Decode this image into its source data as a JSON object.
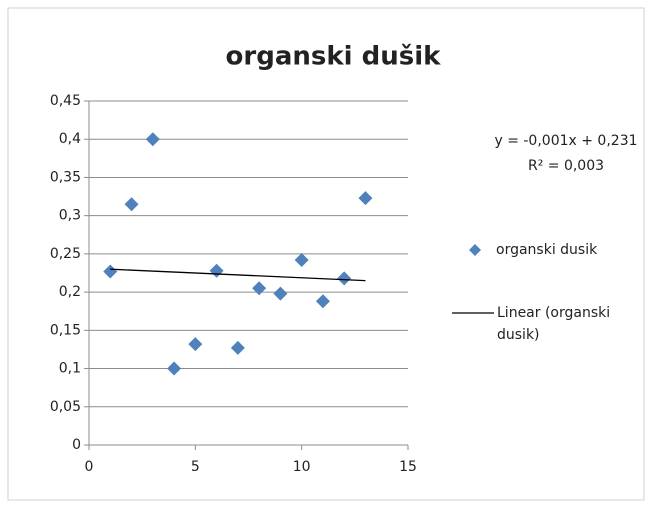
{
  "chart_data": {
    "type": "scatter",
    "title": "organski dušik",
    "x": [
      1,
      2,
      3,
      4,
      5,
      6,
      7,
      8,
      9,
      10,
      11,
      12,
      13
    ],
    "series": [
      {
        "name": "organski dusik",
        "color": "#4f81bd",
        "values": [
          0.227,
          0.315,
          0.4,
          0.1,
          0.132,
          0.228,
          0.127,
          0.205,
          0.198,
          0.242,
          0.188,
          0.218,
          0.323
        ]
      }
    ],
    "trendline": {
      "name": "Linear (organski dusik)",
      "color": "#000000",
      "x": [
        1,
        13
      ],
      "values": [
        0.23,
        0.215
      ]
    },
    "annotations": [
      "y = -0,001x + 0,231",
      "R² = 0,003"
    ],
    "xlim": [
      0,
      15
    ],
    "xticks": [
      0,
      5,
      10,
      15
    ],
    "ylim": [
      0,
      0.45
    ],
    "yticks": [
      0,
      {
        "value": 0.05,
        "label": "0,05"
      },
      {
        "value": 0.1,
        "label": "0,1"
      },
      {
        "value": 0.15,
        "label": "0,15"
      },
      {
        "value": 0.2,
        "label": "0,2"
      },
      {
        "value": 0.25,
        "label": "0,25"
      },
      {
        "value": 0.3,
        "label": "0,3"
      },
      {
        "value": 0.35,
        "label": "0,35"
      },
      {
        "value": 0.4,
        "label": "0,4"
      },
      {
        "value": 0.45,
        "label": "0,45"
      }
    ],
    "grid": true
  }
}
